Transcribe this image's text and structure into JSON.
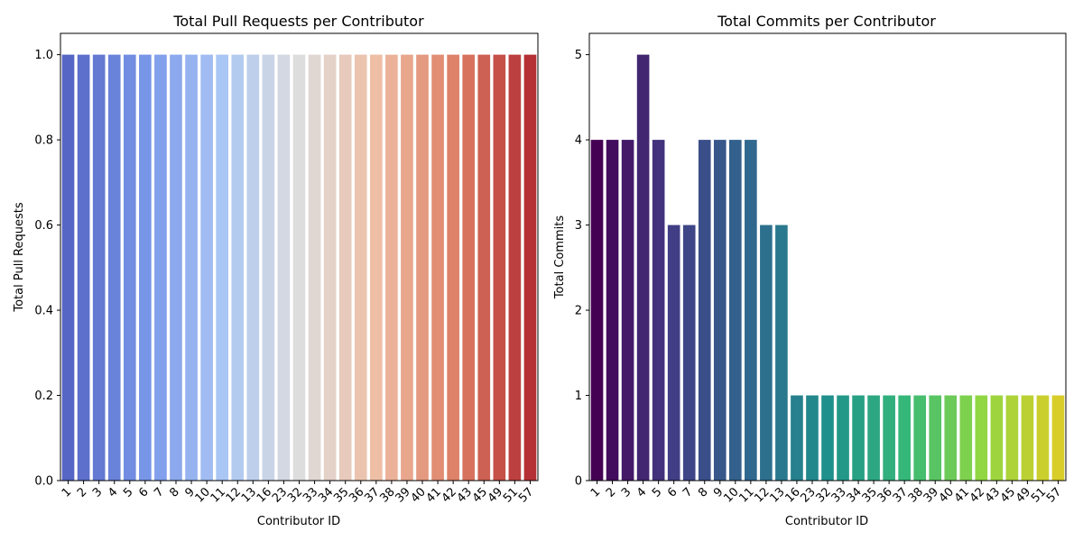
{
  "chart_data": [
    {
      "type": "bar",
      "title": "Total Pull Requests per Contributor",
      "xlabel": "Contributor ID",
      "ylabel": "Total Pull Requests",
      "ylim": [
        0,
        1.05
      ],
      "yticks": [
        "0.0",
        "0.2",
        "0.4",
        "0.6",
        "0.8",
        "1.0"
      ],
      "grid": false,
      "palette": "coolwarm",
      "categories": [
        "1",
        "2",
        "3",
        "4",
        "5",
        "6",
        "7",
        "8",
        "9",
        "10",
        "11",
        "12",
        "13",
        "16",
        "23",
        "32",
        "33",
        "34",
        "35",
        "36",
        "37",
        "38",
        "39",
        "40",
        "41",
        "42",
        "43",
        "45",
        "49",
        "51",
        "57"
      ],
      "values": [
        1,
        1,
        1,
        1,
        1,
        1,
        1,
        1,
        1,
        1,
        1,
        1,
        1,
        1,
        1,
        1,
        1,
        1,
        1,
        1,
        1,
        1,
        1,
        1,
        1,
        1,
        1,
        1,
        1,
        1,
        1
      ]
    },
    {
      "type": "bar",
      "title": "Total Commits per Contributor",
      "xlabel": "Contributor ID",
      "ylabel": "Total Commits",
      "ylim": [
        0,
        5.25
      ],
      "yticks": [
        "0",
        "1",
        "2",
        "3",
        "4",
        "5"
      ],
      "grid": false,
      "palette": "viridis",
      "categories": [
        "1",
        "2",
        "3",
        "4",
        "5",
        "6",
        "7",
        "8",
        "9",
        "10",
        "11",
        "12",
        "13",
        "16",
        "23",
        "32",
        "33",
        "34",
        "35",
        "36",
        "37",
        "38",
        "39",
        "40",
        "41",
        "42",
        "43",
        "45",
        "49",
        "51",
        "57"
      ],
      "values": [
        4,
        4,
        4,
        5,
        4,
        3,
        3,
        4,
        4,
        4,
        4,
        3,
        3,
        1,
        1,
        1,
        1,
        1,
        1,
        1,
        1,
        1,
        1,
        1,
        1,
        1,
        1,
        1,
        1,
        1,
        1
      ]
    }
  ]
}
